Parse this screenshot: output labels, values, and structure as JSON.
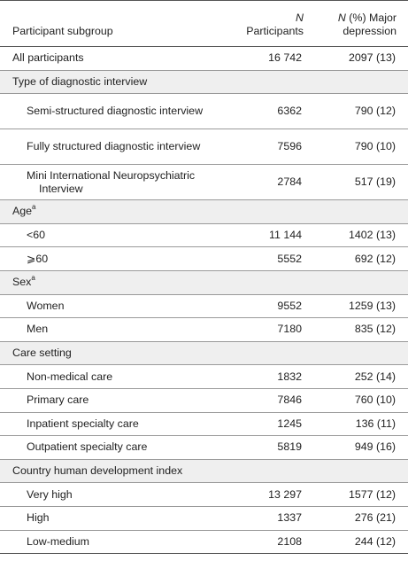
{
  "header": {
    "col1": "Participant subgroup",
    "col2_italic": "N",
    "col2_rest": "Participants",
    "col3_italic": "N",
    "col3_rest": "(%) Major depression"
  },
  "rows": [
    {
      "label": "All participants",
      "participants": "16 742",
      "major": "2097 (13)"
    },
    {
      "group": "Type of diagnostic interview"
    },
    {
      "label": "Semi-structured diagnostic interview",
      "participants": "6362",
      "major": "790 (12)"
    },
    {
      "label": "Fully structured diagnostic interview",
      "participants": "7596",
      "major": "790 (10)"
    },
    {
      "label": "Mini International Neuropsychiatric Interview",
      "participants": "2784",
      "major": "517 (19)"
    },
    {
      "group": "Age",
      "sup": "a"
    },
    {
      "label": "<60",
      "participants": "11 144",
      "major": "1402 (13)"
    },
    {
      "label": "⩾60",
      "participants": "5552",
      "major": "692 (12)"
    },
    {
      "group": "Sex",
      "sup": "a"
    },
    {
      "label": "Women",
      "participants": "9552",
      "major": "1259 (13)"
    },
    {
      "label": "Men",
      "participants": "7180",
      "major": "835 (12)"
    },
    {
      "group": "Care setting"
    },
    {
      "label": "Non-medical care",
      "participants": "1832",
      "major": "252 (14)"
    },
    {
      "label": "Primary care",
      "participants": "7846",
      "major": "760 (10)"
    },
    {
      "label": "Inpatient specialty care",
      "participants": "1245",
      "major": "136 (11)"
    },
    {
      "label": "Outpatient specialty care",
      "participants": "5819",
      "major": "949 (16)"
    },
    {
      "group": "Country human development index"
    },
    {
      "label": "Very high",
      "participants": "13 297",
      "major": "1577 (12)"
    },
    {
      "label": "High",
      "participants": "1337",
      "major": "276 (21)"
    },
    {
      "label": "Low-medium",
      "participants": "2108",
      "major": "244 (12)"
    }
  ]
}
